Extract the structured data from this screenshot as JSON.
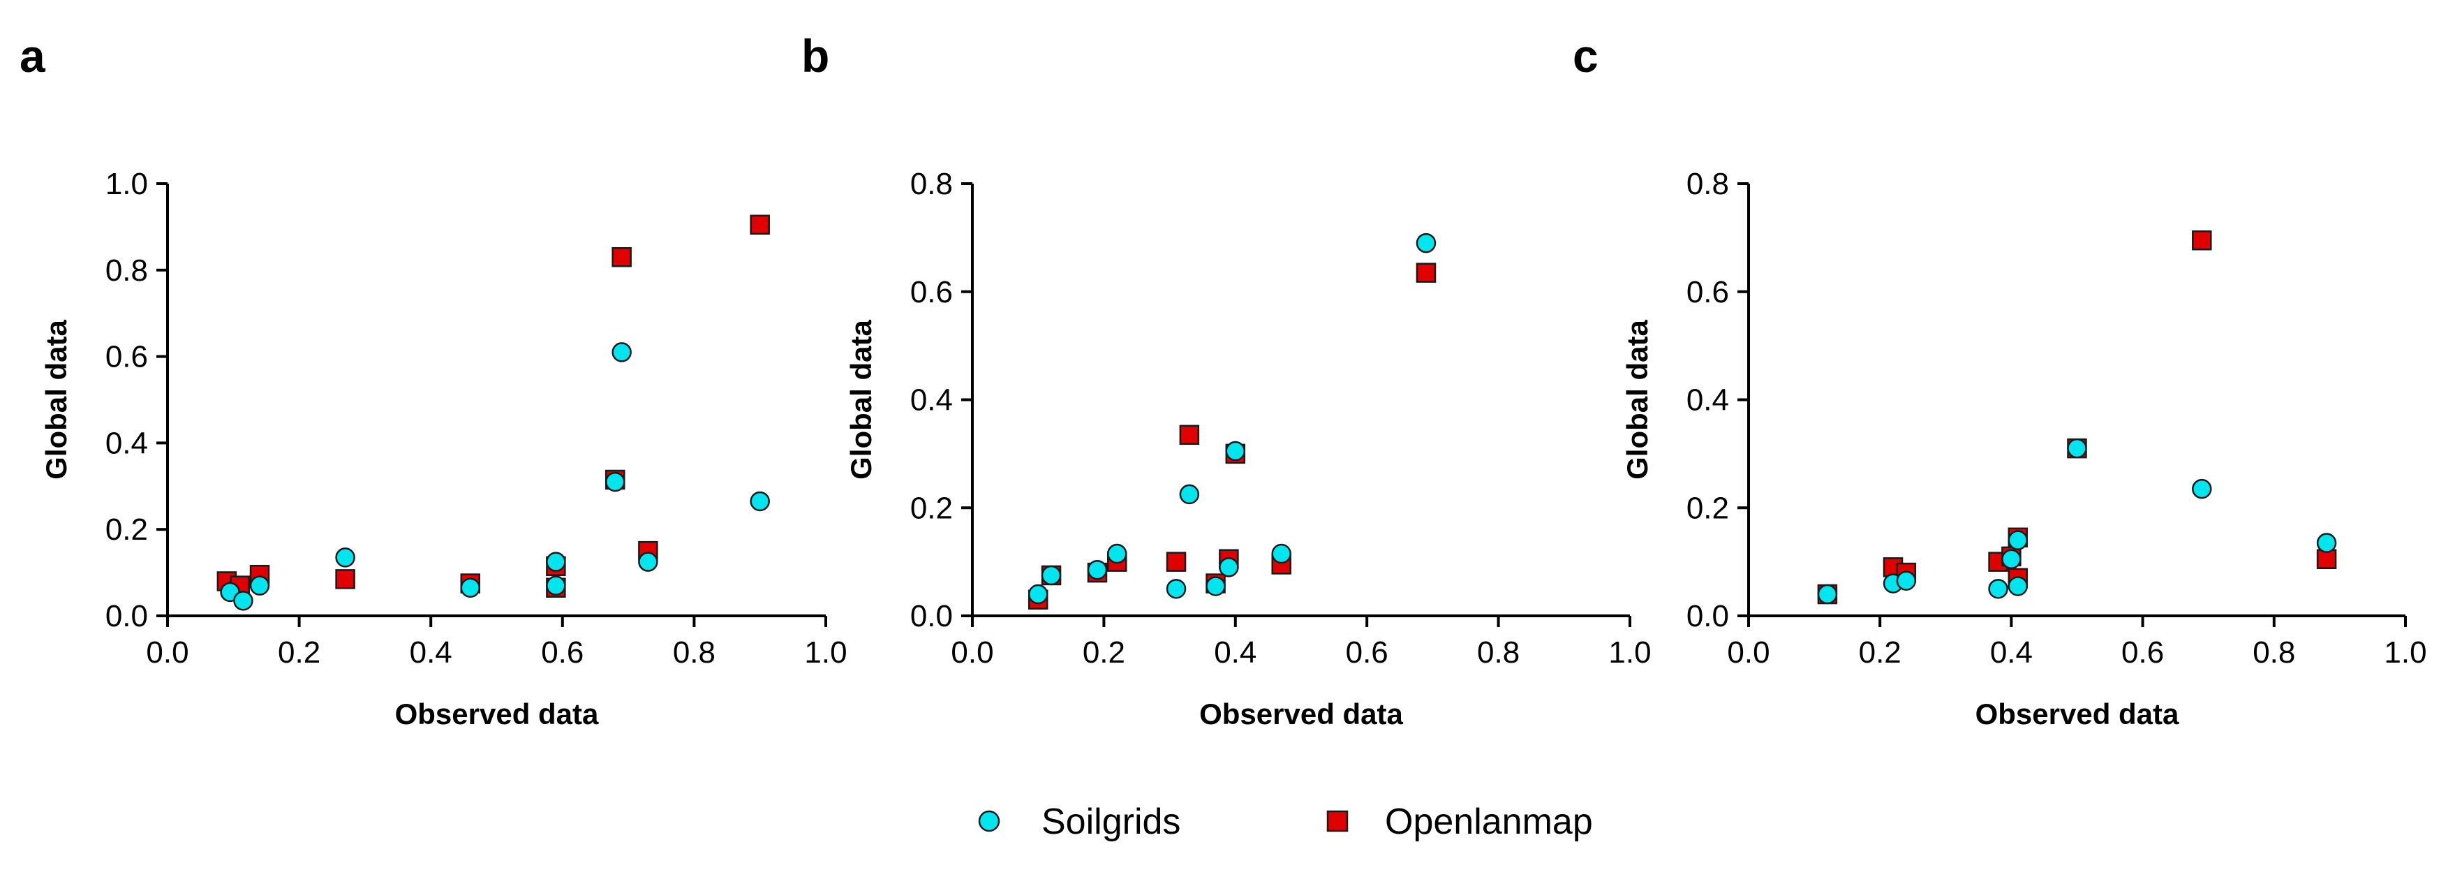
{
  "figure": {
    "panels": [
      "a",
      "b",
      "c"
    ],
    "legend": [
      {
        "label": "Soilgrids",
        "marker": "circle",
        "color": "#00E5EE"
      },
      {
        "label": "Openlanmap",
        "marker": "square",
        "color": "#E00000"
      }
    ]
  },
  "chart_data": [
    {
      "type": "scatter",
      "panel": "a",
      "xlabel": "Observed data",
      "ylabel": "Global data",
      "xlim": [
        0,
        1.0
      ],
      "ylim": [
        0,
        1.0
      ],
      "xticks": [
        0.0,
        0.2,
        0.4,
        0.6,
        0.8,
        1.0
      ],
      "yticks": [
        0.0,
        0.2,
        0.4,
        0.6,
        0.8,
        1.0
      ],
      "xtick_labels": [
        "0.0",
        "0.2",
        "0.4",
        "0.6",
        "0.8",
        "1.0"
      ],
      "ytick_labels": [
        "0.0",
        "0.2",
        "0.4",
        "0.6",
        "0.8",
        "1.0"
      ],
      "grid": false,
      "series": [
        {
          "name": "Openlanmap",
          "marker": "square",
          "color": "#E00000",
          "points": [
            [
              0.09,
              0.08
            ],
            [
              0.11,
              0.07
            ],
            [
              0.14,
              0.095
            ],
            [
              0.27,
              0.085
            ],
            [
              0.46,
              0.075
            ],
            [
              0.59,
              0.065
            ],
            [
              0.59,
              0.115
            ],
            [
              0.68,
              0.315
            ],
            [
              0.69,
              0.83
            ],
            [
              0.73,
              0.15
            ],
            [
              0.9,
              0.905
            ]
          ]
        },
        {
          "name": "Soilgrids",
          "marker": "circle",
          "color": "#00E5EE",
          "points": [
            [
              0.095,
              0.055
            ],
            [
              0.115,
              0.035
            ],
            [
              0.14,
              0.07
            ],
            [
              0.27,
              0.135
            ],
            [
              0.46,
              0.065
            ],
            [
              0.59,
              0.07
            ],
            [
              0.59,
              0.125
            ],
            [
              0.68,
              0.31
            ],
            [
              0.69,
              0.61
            ],
            [
              0.73,
              0.125
            ],
            [
              0.9,
              0.265
            ]
          ]
        }
      ]
    },
    {
      "type": "scatter",
      "panel": "b",
      "xlabel": "Observed data",
      "ylabel": "Global data",
      "xlim": [
        0,
        1.0
      ],
      "ylim": [
        0,
        0.8
      ],
      "xticks": [
        0.0,
        0.2,
        0.4,
        0.6,
        0.8,
        1.0
      ],
      "yticks": [
        0.0,
        0.2,
        0.4,
        0.6,
        0.8
      ],
      "xtick_labels": [
        "0.0",
        "0.2",
        "0.4",
        "0.6",
        "0.8",
        "1.0"
      ],
      "ytick_labels": [
        "0.0",
        "0.2",
        "0.4",
        "0.6",
        "0.8"
      ],
      "grid": false,
      "series": [
        {
          "name": "Openlanmap",
          "marker": "square",
          "color": "#E00000",
          "points": [
            [
              0.1,
              0.03
            ],
            [
              0.12,
              0.075
            ],
            [
              0.19,
              0.08
            ],
            [
              0.22,
              0.1
            ],
            [
              0.31,
              0.1
            ],
            [
              0.33,
              0.335
            ],
            [
              0.37,
              0.06
            ],
            [
              0.39,
              0.105
            ],
            [
              0.4,
              0.3
            ],
            [
              0.47,
              0.095
            ],
            [
              0.69,
              0.635
            ]
          ]
        },
        {
          "name": "Soilgrids",
          "marker": "circle",
          "color": "#00E5EE",
          "points": [
            [
              0.1,
              0.04
            ],
            [
              0.12,
              0.075
            ],
            [
              0.19,
              0.085
            ],
            [
              0.22,
              0.115
            ],
            [
              0.31,
              0.05
            ],
            [
              0.33,
              0.225
            ],
            [
              0.37,
              0.055
            ],
            [
              0.39,
              0.09
            ],
            [
              0.4,
              0.305
            ],
            [
              0.47,
              0.115
            ],
            [
              0.69,
              0.69
            ]
          ]
        }
      ]
    },
    {
      "type": "scatter",
      "panel": "c",
      "xlabel": "Observed data",
      "ylabel": "Global data",
      "xlim": [
        0,
        1.0
      ],
      "ylim": [
        0,
        0.8
      ],
      "xticks": [
        0.0,
        0.2,
        0.4,
        0.6,
        0.8,
        1.0
      ],
      "yticks": [
        0.0,
        0.2,
        0.4,
        0.6,
        0.8
      ],
      "xtick_labels": [
        "0.0",
        "0.2",
        "0.4",
        "0.6",
        "0.8",
        "1.0"
      ],
      "ytick_labels": [
        "0.0",
        "0.2",
        "0.4",
        "0.6",
        "0.8"
      ],
      "grid": false,
      "series": [
        {
          "name": "Openlanmap",
          "marker": "square",
          "color": "#E00000",
          "points": [
            [
              0.12,
              0.04
            ],
            [
              0.22,
              0.09
            ],
            [
              0.24,
              0.08
            ],
            [
              0.38,
              0.1
            ],
            [
              0.4,
              0.11
            ],
            [
              0.41,
              0.145
            ],
            [
              0.41,
              0.07
            ],
            [
              0.5,
              0.31
            ],
            [
              0.69,
              0.695
            ],
            [
              0.88,
              0.105
            ]
          ]
        },
        {
          "name": "Soilgrids",
          "marker": "circle",
          "color": "#00E5EE",
          "points": [
            [
              0.12,
              0.04
            ],
            [
              0.22,
              0.06
            ],
            [
              0.24,
              0.065
            ],
            [
              0.38,
              0.05
            ],
            [
              0.4,
              0.105
            ],
            [
              0.41,
              0.14
            ],
            [
              0.41,
              0.055
            ],
            [
              0.5,
              0.31
            ],
            [
              0.69,
              0.235
            ],
            [
              0.88,
              0.135
            ]
          ]
        }
      ]
    }
  ]
}
